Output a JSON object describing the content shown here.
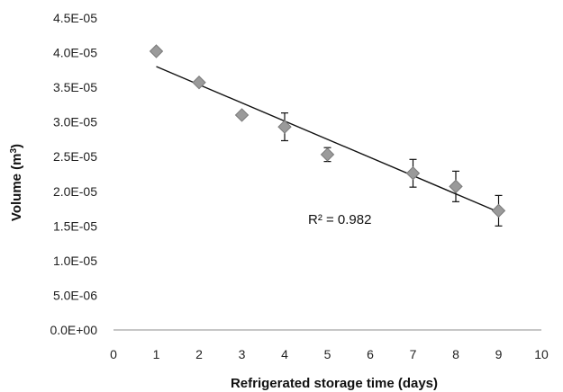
{
  "chart_data": {
    "type": "scatter",
    "title": "",
    "xlabel": "Refrigerated storage time (days)",
    "ylabel_main": "Volume (m",
    "ylabel_sup": "3",
    "ylabel_close": ")",
    "xlim": [
      0,
      10
    ],
    "ylim": [
      0,
      4.5e-05
    ],
    "x_ticks": [
      0,
      1,
      2,
      3,
      4,
      5,
      6,
      7,
      8,
      9,
      10
    ],
    "x_tick_labels": [
      "0",
      "1",
      "2",
      "3",
      "4",
      "5",
      "6",
      "7",
      "8",
      "9",
      "10"
    ],
    "y_ticks": [
      0,
      5e-06,
      1e-05,
      1.5e-05,
      2e-05,
      2.5e-05,
      3e-05,
      3.5e-05,
      4e-05,
      4.5e-05
    ],
    "y_tick_labels": [
      "0.0E+00",
      "5.0E-06",
      "1.0E-05",
      "1.5E-05",
      "2.0E-05",
      "2.5E-05",
      "3.0E-05",
      "3.5E-05",
      "4.0E-05",
      "4.5E-05"
    ],
    "grid": false,
    "series": [
      {
        "marker": "diamond",
        "color": "#9a9a9a",
        "edge_color": "#7a7a7a",
        "x": [
          1,
          2,
          3,
          4,
          5,
          7,
          8,
          9
        ],
        "y": [
          4.02e-05,
          3.57e-05,
          3.1e-05,
          2.93e-05,
          2.53e-05,
          2.26e-05,
          2.07e-05,
          1.72e-05
        ],
        "error": [
          0,
          0,
          0,
          2e-06,
          1e-06,
          2e-06,
          2.2e-06,
          2.2e-06
        ]
      }
    ],
    "trendline": {
      "type": "linear",
      "x_range": [
        1,
        9
      ],
      "y_start": 3.8e-05,
      "y_end": 1.7e-05
    },
    "annotation": "R² = 0.982"
  }
}
